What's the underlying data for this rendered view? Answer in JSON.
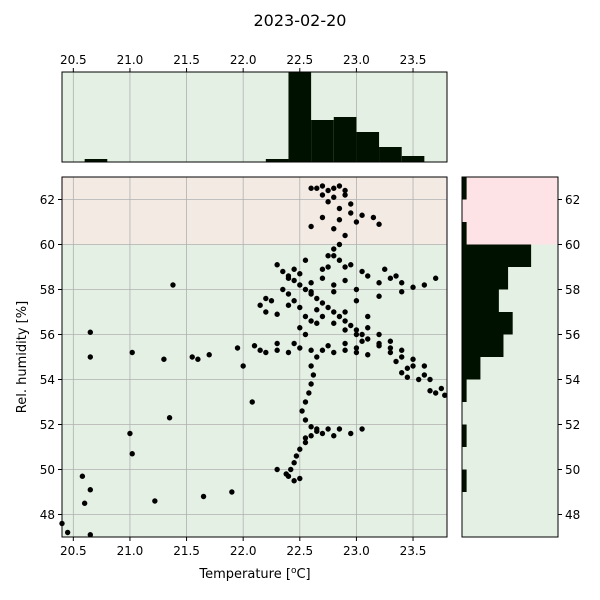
{
  "chart_data": {
    "type": "scatter",
    "title": "2023-02-20",
    "xlabel": "Temperature [°C]",
    "xlabel_parts": {
      "prefix": "Temperature [",
      "sup": "o",
      "suffix": "C]"
    },
    "ylabel": "Rel. humidity [%]",
    "xlim": [
      20.4,
      23.8
    ],
    "ylim": [
      47.0,
      63.0
    ],
    "x_ticks": [
      20.5,
      21.0,
      21.5,
      22.0,
      22.5,
      23.0,
      23.5
    ],
    "y_ticks": [
      48,
      50,
      52,
      54,
      56,
      58,
      60,
      62
    ],
    "grid": true,
    "comfort_band_y": [
      40,
      60
    ],
    "colors": {
      "background_ok": "#e4f0e4",
      "background_high": "#f3eae3",
      "hist_high": "#fde3e6",
      "marker": "#000000",
      "bar": "#001100",
      "grid": "#b0b0b0"
    },
    "x_hist": {
      "bin_start": 20.4,
      "bin_width": 0.2,
      "counts": [
        0,
        1,
        0,
        0,
        0,
        0,
        0,
        0,
        0,
        1,
        30,
        14,
        15,
        10,
        5,
        2,
        0
      ]
    },
    "y_hist": {
      "bin_start": 47.0,
      "bin_width": 1.0,
      "counts": [
        0,
        0,
        1,
        0,
        1,
        0,
        1,
        4,
        9,
        11,
        8,
        10,
        15,
        1,
        0,
        1
      ]
    },
    "points": [
      [
        22.6,
        62.5
      ],
      [
        22.65,
        62.5
      ],
      [
        22.7,
        62.6
      ],
      [
        22.75,
        62.4
      ],
      [
        22.8,
        62.5
      ],
      [
        22.85,
        62.6
      ],
      [
        22.9,
        62.4
      ],
      [
        22.7,
        62.2
      ],
      [
        22.8,
        62.1
      ],
      [
        22.9,
        62.2
      ],
      [
        22.95,
        61.8
      ],
      [
        22.75,
        61.9
      ],
      [
        22.85,
        61.6
      ],
      [
        22.95,
        61.4
      ],
      [
        23.05,
        61.3
      ],
      [
        22.7,
        61.2
      ],
      [
        22.85,
        61.1
      ],
      [
        23.0,
        61.0
      ],
      [
        23.15,
        61.2
      ],
      [
        23.2,
        60.9
      ],
      [
        22.6,
        60.8
      ],
      [
        22.8,
        60.7
      ],
      [
        22.9,
        60.4
      ],
      [
        22.85,
        60.0
      ],
      [
        22.8,
        59.8
      ],
      [
        22.75,
        59.5
      ],
      [
        22.85,
        59.3
      ],
      [
        22.9,
        59.0
      ],
      [
        22.8,
        59.5
      ],
      [
        22.75,
        59.0
      ],
      [
        22.35,
        58.8
      ],
      [
        22.4,
        58.6
      ],
      [
        22.45,
        58.4
      ],
      [
        22.5,
        58.2
      ],
      [
        22.55,
        58.0
      ],
      [
        22.6,
        57.8
      ],
      [
        22.65,
        57.6
      ],
      [
        22.7,
        57.4
      ],
      [
        22.75,
        57.2
      ],
      [
        22.8,
        57.0
      ],
      [
        22.85,
        56.8
      ],
      [
        22.9,
        56.6
      ],
      [
        22.95,
        56.4
      ],
      [
        23.0,
        56.2
      ],
      [
        23.05,
        56.0
      ],
      [
        23.1,
        55.8
      ],
      [
        23.2,
        55.6
      ],
      [
        23.3,
        55.4
      ],
      [
        23.4,
        55.0
      ],
      [
        23.5,
        54.6
      ],
      [
        23.6,
        54.2
      ],
      [
        23.7,
        53.4
      ],
      [
        23.78,
        53.3
      ],
      [
        23.65,
        53.5
      ],
      [
        23.55,
        54.0
      ],
      [
        23.45,
        54.1
      ],
      [
        23.4,
        54.3
      ],
      [
        23.35,
        54.8
      ],
      [
        22.4,
        57.8
      ],
      [
        22.45,
        57.5
      ],
      [
        22.5,
        57.2
      ],
      [
        22.55,
        56.8
      ],
      [
        22.6,
        56.6
      ],
      [
        22.5,
        56.3
      ],
      [
        22.55,
        56.0
      ],
      [
        22.65,
        56.5
      ],
      [
        22.7,
        56.8
      ],
      [
        22.8,
        56.5
      ],
      [
        22.9,
        56.2
      ],
      [
        23.0,
        56.0
      ],
      [
        23.1,
        56.3
      ],
      [
        23.2,
        56.0
      ],
      [
        23.3,
        55.7
      ],
      [
        22.45,
        55.6
      ],
      [
        22.5,
        55.4
      ],
      [
        22.6,
        55.3
      ],
      [
        22.4,
        55.2
      ],
      [
        22.3,
        55.3
      ],
      [
        22.2,
        55.2
      ],
      [
        22.15,
        55.3
      ],
      [
        22.1,
        55.5
      ],
      [
        22.3,
        55.6
      ],
      [
        22.7,
        55.3
      ],
      [
        22.8,
        55.2
      ],
      [
        22.9,
        55.3
      ],
      [
        23.0,
        55.2
      ],
      [
        23.1,
        55.1
      ],
      [
        22.4,
        58.5
      ],
      [
        22.5,
        58.7
      ],
      [
        22.6,
        58.3
      ],
      [
        22.7,
        58.5
      ],
      [
        22.8,
        58.2
      ],
      [
        22.9,
        58.4
      ],
      [
        23.0,
        58.0
      ],
      [
        23.1,
        58.6
      ],
      [
        23.2,
        58.3
      ],
      [
        23.3,
        58.5
      ],
      [
        23.4,
        58.3
      ],
      [
        23.5,
        58.1
      ],
      [
        23.6,
        58.2
      ],
      [
        23.7,
        58.5
      ],
      [
        22.3,
        59.1
      ],
      [
        22.45,
        58.9
      ],
      [
        22.55,
        59.3
      ],
      [
        22.7,
        58.9
      ],
      [
        22.95,
        59.1
      ],
      [
        23.05,
        58.8
      ],
      [
        23.25,
        58.9
      ],
      [
        23.35,
        58.6
      ],
      [
        22.35,
        58.0
      ],
      [
        22.4,
        57.3
      ],
      [
        22.25,
        57.5
      ],
      [
        22.2,
        57.6
      ],
      [
        22.15,
        57.3
      ],
      [
        22.2,
        57.0
      ],
      [
        22.3,
        56.9
      ],
      [
        22.6,
        57.9
      ],
      [
        22.8,
        57.9
      ],
      [
        23.0,
        57.5
      ],
      [
        23.2,
        57.7
      ],
      [
        23.4,
        57.9
      ],
      [
        22.65,
        57.1
      ],
      [
        22.9,
        57.0
      ],
      [
        23.1,
        56.8
      ],
      [
        22.65,
        55.0
      ],
      [
        22.6,
        54.6
      ],
      [
        22.62,
        54.2
      ],
      [
        22.6,
        53.8
      ],
      [
        22.58,
        53.4
      ],
      [
        22.55,
        53.0
      ],
      [
        22.52,
        52.6
      ],
      [
        22.55,
        52.2
      ],
      [
        22.6,
        51.9
      ],
      [
        22.65,
        51.7
      ],
      [
        22.6,
        51.5
      ],
      [
        22.55,
        51.2
      ],
      [
        22.5,
        50.9
      ],
      [
        22.47,
        50.6
      ],
      [
        22.45,
        50.3
      ],
      [
        22.42,
        50.0
      ],
      [
        22.38,
        49.8
      ],
      [
        22.5,
        49.6
      ],
      [
        22.45,
        49.5
      ],
      [
        22.3,
        50.0
      ],
      [
        22.4,
        49.7
      ],
      [
        22.65,
        51.8
      ],
      [
        22.75,
        51.8
      ],
      [
        22.85,
        51.8
      ],
      [
        22.95,
        51.6
      ],
      [
        23.05,
        51.8
      ],
      [
        22.7,
        51.6
      ],
      [
        22.8,
        51.5
      ],
      [
        22.55,
        51.4
      ],
      [
        23.0,
        55.4
      ],
      [
        23.2,
        55.5
      ],
      [
        23.4,
        55.3
      ],
      [
        23.5,
        54.9
      ],
      [
        23.6,
        54.6
      ],
      [
        23.65,
        54.0
      ],
      [
        23.75,
        53.6
      ],
      [
        23.3,
        55.2
      ],
      [
        23.45,
        54.5
      ],
      [
        22.75,
        55.5
      ],
      [
        22.9,
        55.6
      ],
      [
        23.05,
        55.7
      ],
      [
        20.4,
        47.6
      ],
      [
        20.45,
        47.2
      ],
      [
        20.65,
        47.1
      ],
      [
        20.6,
        48.5
      ],
      [
        20.65,
        49.1
      ],
      [
        20.58,
        49.7
      ],
      [
        20.65,
        55.0
      ],
      [
        20.65,
        56.1
      ],
      [
        21.0,
        51.6
      ],
      [
        21.02,
        50.7
      ],
      [
        21.02,
        55.2
      ],
      [
        21.22,
        48.6
      ],
      [
        21.3,
        54.9
      ],
      [
        21.35,
        52.3
      ],
      [
        21.38,
        58.2
      ],
      [
        21.55,
        55.0
      ],
      [
        21.6,
        54.9
      ],
      [
        21.65,
        48.8
      ],
      [
        21.7,
        55.1
      ],
      [
        21.9,
        49.0
      ],
      [
        21.95,
        55.4
      ],
      [
        22.0,
        54.6
      ],
      [
        22.08,
        53.0
      ]
    ]
  }
}
